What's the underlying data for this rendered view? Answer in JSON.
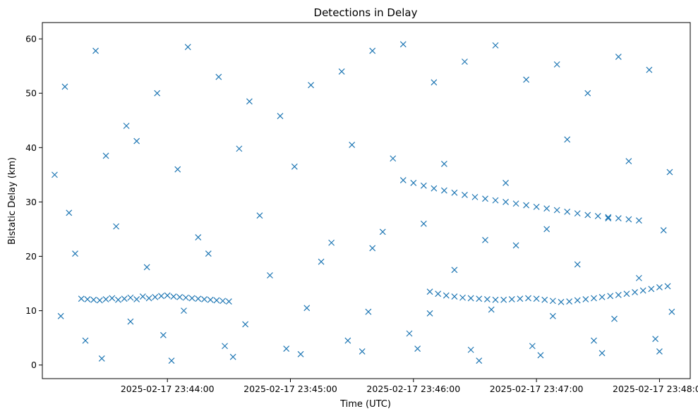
{
  "chart_data": {
    "type": "scatter",
    "title": "Detections in Delay",
    "xlabel": "Time (UTC)",
    "ylabel": "Bistatic Delay (km)",
    "marker": "x",
    "color": "#1f77b4",
    "grid": false,
    "legend": "none",
    "xlim": [
      "2025-02-17 23:42:59",
      "2025-02-17 23:48:15"
    ],
    "ylim": [
      -2.5,
      63
    ],
    "x_ticks": [
      "2025-02-17 23:44:00",
      "2025-02-17 23:45:00",
      "2025-02-17 23:46:00",
      "2025-02-17 23:47:00",
      "2025-02-17 23:48:00"
    ],
    "y_ticks": [
      0,
      10,
      20,
      30,
      40,
      50,
      60
    ],
    "series": [
      {
        "x": [
          "2025-02-17 23:43:18",
          "2025-02-17 23:43:21",
          "2025-02-17 23:43:24",
          "2025-02-17 23:43:27",
          "2025-02-17 23:43:30",
          "2025-02-17 23:43:33",
          "2025-02-17 23:43:36",
          "2025-02-17 23:43:39",
          "2025-02-17 23:43:42",
          "2025-02-17 23:43:45",
          "2025-02-17 23:43:48",
          "2025-02-17 23:43:51",
          "2025-02-17 23:43:54",
          "2025-02-17 23:43:57",
          "2025-02-17 23:44:00",
          "2025-02-17 23:44:03",
          "2025-02-17 23:44:06",
          "2025-02-17 23:44:09",
          "2025-02-17 23:44:12",
          "2025-02-17 23:44:15",
          "2025-02-17 23:44:18",
          "2025-02-17 23:44:21",
          "2025-02-17 23:44:24",
          "2025-02-17 23:44:27",
          "2025-02-17 23:44:30",
          "2025-02-17 23:46:08",
          "2025-02-17 23:46:12",
          "2025-02-17 23:46:16",
          "2025-02-17 23:46:20",
          "2025-02-17 23:46:24",
          "2025-02-17 23:46:28",
          "2025-02-17 23:46:32",
          "2025-02-17 23:46:36",
          "2025-02-17 23:46:40",
          "2025-02-17 23:46:44",
          "2025-02-17 23:46:48",
          "2025-02-17 23:46:52",
          "2025-02-17 23:46:56",
          "2025-02-17 23:47:00",
          "2025-02-17 23:47:04",
          "2025-02-17 23:47:08",
          "2025-02-17 23:47:12",
          "2025-02-17 23:47:16",
          "2025-02-17 23:47:20",
          "2025-02-17 23:47:24",
          "2025-02-17 23:47:28",
          "2025-02-17 23:47:32",
          "2025-02-17 23:47:36",
          "2025-02-17 23:47:40",
          "2025-02-17 23:47:44",
          "2025-02-17 23:47:48",
          "2025-02-17 23:47:52",
          "2025-02-17 23:47:56",
          "2025-02-17 23:48:00",
          "2025-02-17 23:48:04",
          "2025-02-17 23:45:55",
          "2025-02-17 23:46:00",
          "2025-02-17 23:46:05",
          "2025-02-17 23:46:10",
          "2025-02-17 23:46:15",
          "2025-02-17 23:46:20",
          "2025-02-17 23:46:25",
          "2025-02-17 23:46:30",
          "2025-02-17 23:46:35",
          "2025-02-17 23:46:40",
          "2025-02-17 23:46:45",
          "2025-02-17 23:46:50",
          "2025-02-17 23:46:55",
          "2025-02-17 23:47:00",
          "2025-02-17 23:47:05",
          "2025-02-17 23:47:10",
          "2025-02-17 23:47:15",
          "2025-02-17 23:47:20",
          "2025-02-17 23:47:25",
          "2025-02-17 23:47:30",
          "2025-02-17 23:47:35",
          "2025-02-17 23:47:40",
          "2025-02-17 23:47:45",
          "2025-02-17 23:47:50",
          "2025-02-17 23:43:10",
          "2025-02-17 23:43:25",
          "2025-02-17 23:43:40",
          "2025-02-17 23:43:55",
          "2025-02-17 23:44:10",
          "2025-02-17 23:44:25",
          "2025-02-17 23:44:40",
          "2025-02-17 23:44:55",
          "2025-02-17 23:45:10",
          "2025-02-17 23:45:25",
          "2025-02-17 23:45:40",
          "2025-02-17 23:45:55",
          "2025-02-17 23:46:10",
          "2025-02-17 23:46:25",
          "2025-02-17 23:46:40",
          "2025-02-17 23:46:55",
          "2025-02-17 23:47:10",
          "2025-02-17 23:47:25",
          "2025-02-17 23:47:40",
          "2025-02-17 23:47:55",
          "2025-02-17 23:43:05",
          "2025-02-17 23:43:30",
          "2025-02-17 23:43:45",
          "2025-02-17 23:44:05",
          "2025-02-17 23:44:35",
          "2025-02-17 23:45:02",
          "2025-02-17 23:45:30",
          "2025-02-17 23:45:50",
          "2025-02-17 23:46:15",
          "2025-02-17 23:46:45",
          "2025-02-17 23:47:15",
          "2025-02-17 23:47:45",
          "2025-02-17 23:48:05",
          "2025-02-17 23:43:12",
          "2025-02-17 23:43:35",
          "2025-02-17 23:44:15",
          "2025-02-17 23:44:45",
          "2025-02-17 23:45:20",
          "2025-02-17 23:45:45",
          "2025-02-17 23:46:05",
          "2025-02-17 23:46:35",
          "2025-02-17 23:47:05",
          "2025-02-17 23:47:35",
          "2025-02-17 23:48:02",
          "2025-02-17 23:43:15",
          "2025-02-17 23:43:50",
          "2025-02-17 23:44:20",
          "2025-02-17 23:44:50",
          "2025-02-17 23:45:15",
          "2025-02-17 23:45:40",
          "2025-02-17 23:46:20",
          "2025-02-17 23:46:50",
          "2025-02-17 23:47:20",
          "2025-02-17 23:47:50",
          "2025-02-17 23:43:08",
          "2025-02-17 23:43:42",
          "2025-02-17 23:44:08",
          "2025-02-17 23:44:38",
          "2025-02-17 23:45:08",
          "2025-02-17 23:45:38",
          "2025-02-17 23:46:08",
          "2025-02-17 23:46:38",
          "2025-02-17 23:47:08",
          "2025-02-17 23:47:38",
          "2025-02-17 23:48:06",
          "2025-02-17 23:43:20",
          "2025-02-17 23:43:58",
          "2025-02-17 23:44:28",
          "2025-02-17 23:44:58",
          "2025-02-17 23:45:28",
          "2025-02-17 23:45:58",
          "2025-02-17 23:46:28",
          "2025-02-17 23:46:58",
          "2025-02-17 23:47:28",
          "2025-02-17 23:47:58",
          "2025-02-17 23:43:28",
          "2025-02-17 23:44:02",
          "2025-02-17 23:44:32",
          "2025-02-17 23:45:05",
          "2025-02-17 23:45:35",
          "2025-02-17 23:46:02",
          "2025-02-17 23:46:32",
          "2025-02-17 23:47:02",
          "2025-02-17 23:47:32",
          "2025-02-17 23:48:00"
        ],
        "y": [
          12.2,
          12.1,
          12.0,
          11.9,
          12.1,
          12.3,
          12.0,
          12.2,
          12.4,
          12.1,
          12.6,
          12.3,
          12.5,
          12.7,
          12.8,
          12.6,
          12.5,
          12.4,
          12.3,
          12.2,
          12.1,
          12.0,
          11.9,
          11.8,
          11.7,
          13.5,
          13.1,
          12.8,
          12.6,
          12.4,
          12.3,
          12.2,
          12.1,
          12.0,
          12.0,
          12.1,
          12.2,
          12.3,
          12.2,
          12.0,
          11.8,
          11.6,
          11.7,
          11.9,
          12.1,
          12.3,
          12.5,
          12.7,
          12.9,
          13.1,
          13.4,
          13.7,
          14.0,
          14.3,
          14.5,
          34.0,
          33.5,
          33.0,
          32.5,
          32.1,
          31.7,
          31.3,
          30.9,
          30.6,
          30.3,
          30.0,
          29.7,
          29.4,
          29.1,
          28.8,
          28.5,
          28.2,
          27.9,
          27.6,
          27.4,
          27.2,
          27.0,
          26.8,
          26.6,
          51.2,
          57.8,
          44.0,
          50.0,
          58.5,
          53.0,
          48.5,
          45.8,
          51.5,
          54.0,
          57.8,
          59.0,
          52.0,
          55.8,
          58.8,
          52.5,
          55.3,
          50.0,
          56.7,
          54.3,
          35.0,
          38.5,
          41.2,
          36.0,
          39.8,
          36.5,
          40.5,
          38.0,
          37.0,
          33.5,
          41.5,
          37.5,
          35.5,
          28.0,
          25.5,
          23.5,
          27.5,
          22.5,
          24.5,
          26.0,
          23.0,
          25.0,
          27.0,
          24.8,
          20.5,
          18.0,
          20.5,
          16.5,
          19.0,
          21.5,
          17.5,
          22.0,
          18.5,
          16.0,
          9.0,
          8.0,
          10.0,
          7.5,
          10.5,
          9.8,
          9.5,
          10.2,
          9.0,
          8.5,
          9.8,
          4.5,
          5.5,
          3.5,
          3.0,
          4.5,
          5.8,
          2.8,
          3.5,
          4.5,
          4.8,
          1.2,
          0.8,
          1.5,
          2.0,
          2.5,
          3.0,
          0.8,
          1.8,
          2.2,
          2.5
        ]
      }
    ]
  }
}
